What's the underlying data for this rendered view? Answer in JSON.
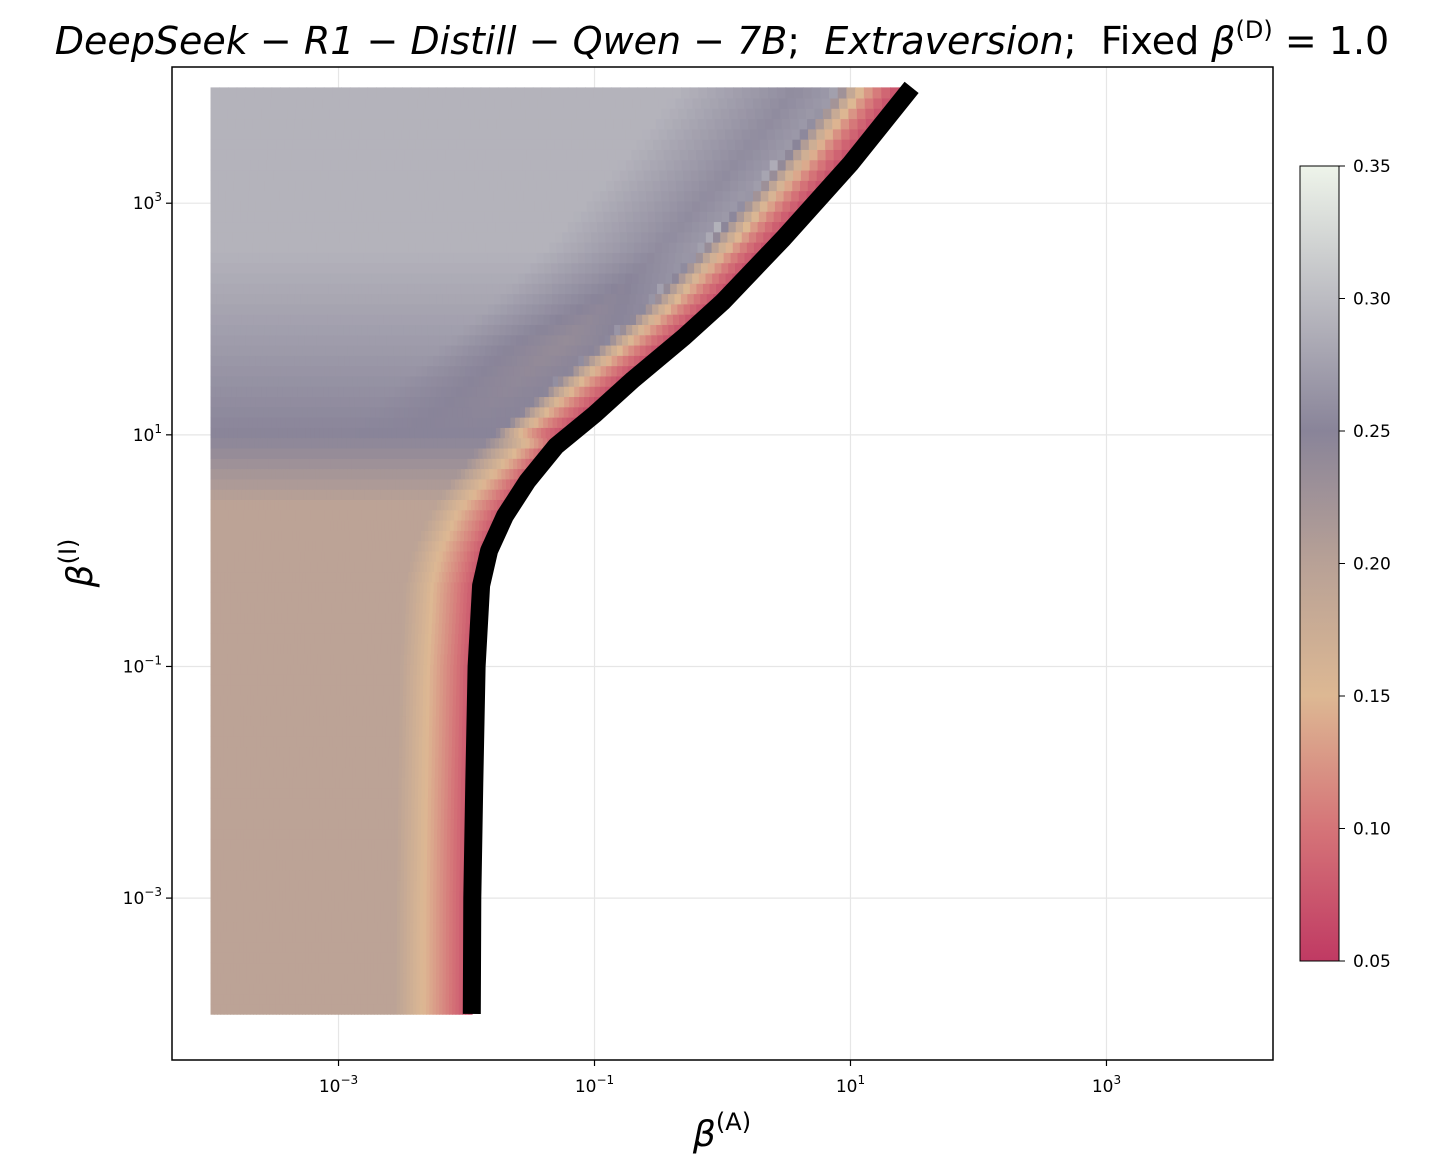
{
  "chart_data": {
    "type": "heatmap",
    "title_parts": {
      "model": "DeepSeek − R1 − Distill − Qwen − 7B",
      "sep1": ";  ",
      "trait": "Extraversion",
      "sep2": ";  ",
      "fixed_label": "Fixed ",
      "fixed_symbol": "β",
      "fixed_sup": "(D)",
      "fixed_value": " = 1.0"
    },
    "xlabel": {
      "symbol": "β",
      "sup": "(A)"
    },
    "ylabel": {
      "symbol": "β",
      "sup": "(I)"
    },
    "x_scale": "log",
    "y_scale": "log",
    "xlim": [
      5e-05,
      20000
    ],
    "ylim": [
      4e-05,
      15000
    ],
    "x_ticks": [
      {
        "value": 0.001,
        "base": "10",
        "exp": "−3"
      },
      {
        "value": 0.1,
        "base": "10",
        "exp": "−1"
      },
      {
        "value": 10,
        "base": "10",
        "exp": "1"
      },
      {
        "value": 1000,
        "base": "10",
        "exp": "3"
      }
    ],
    "y_ticks": [
      {
        "value": 0.001,
        "base": "10",
        "exp": "−3"
      },
      {
        "value": 0.1,
        "base": "10",
        "exp": "−1"
      },
      {
        "value": 10,
        "base": "10",
        "exp": "1"
      },
      {
        "value": 1000,
        "base": "10",
        "exp": "3"
      }
    ],
    "grid": true,
    "data_extent": {
      "x": [
        0.0001,
        30
      ],
      "y": [
        0.0001,
        10000
      ]
    },
    "colorbar": {
      "min": 0.05,
      "max": 0.35,
      "ticks": [
        "0.05",
        "0.10",
        "0.15",
        "0.20",
        "0.25",
        "0.30",
        "0.35"
      ],
      "colors": [
        {
          "value": 0.05,
          "color": "#c03a63"
        },
        {
          "value": 0.1,
          "color": "#d57478"
        },
        {
          "value": 0.15,
          "color": "#ddb893"
        },
        {
          "value": 0.2,
          "color": "#b8a196"
        },
        {
          "value": 0.25,
          "color": "#898499"
        },
        {
          "value": 0.3,
          "color": "#bcbcc2"
        },
        {
          "value": 0.35,
          "color": "#eef4ea"
        }
      ]
    },
    "boundary_curve": [
      [
        0.011,
        0.0001
      ],
      [
        0.0111,
        0.001
      ],
      [
        0.0115,
        0.01
      ],
      [
        0.012,
        0.1
      ],
      [
        0.013,
        0.5
      ],
      [
        0.015,
        1
      ],
      [
        0.02,
        2
      ],
      [
        0.03,
        4
      ],
      [
        0.05,
        8
      ],
      [
        0.1,
        15
      ],
      [
        0.2,
        30
      ],
      [
        0.5,
        70
      ],
      [
        1,
        140
      ],
      [
        3,
        500
      ],
      [
        10,
        2200
      ],
      [
        30,
        10000
      ]
    ],
    "boundary_color": "#000000"
  }
}
